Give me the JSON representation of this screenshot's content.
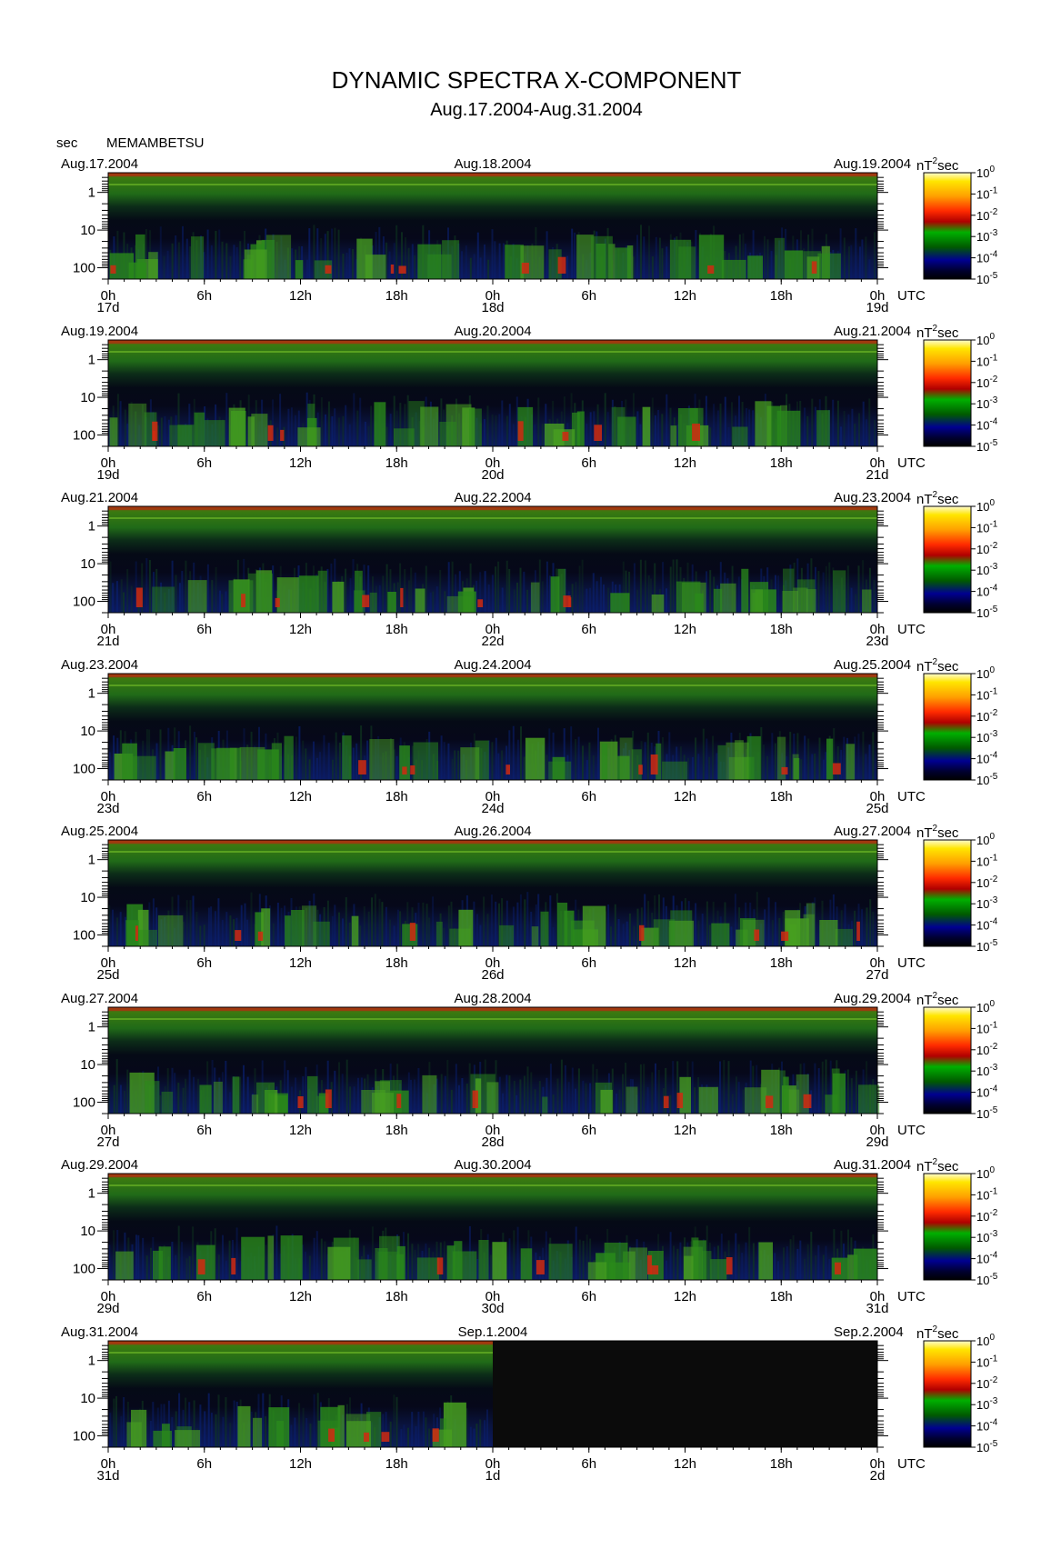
{
  "title": "DYNAMIC SPECTRA X-COMPONENT",
  "subtitle": "Aug.17.2004-Aug.31.2004",
  "y_unit": "sec",
  "station": "MEMAMBETSU",
  "colorbar_unit": "nT",
  "colorbar_unit_sup": "2",
  "colorbar_unit_tail": "sec",
  "x_unit": "UTC",
  "chart_data": {
    "type": "heatmap",
    "title": "DYNAMIC SPECTRA X-COMPONENT",
    "subtitle": "Aug.17.2004-Aug.31.2004",
    "ylabel": "sec",
    "y_scale": "log",
    "y_ticks": [
      "1",
      "10",
      "100"
    ],
    "x_ticks": [
      "0h",
      "6h",
      "12h",
      "18h",
      "0h",
      "6h",
      "12h",
      "18h",
      "0h"
    ],
    "x_unit": "UTC",
    "colorbar": {
      "scale": "log",
      "ticks": [
        "10^0",
        "10^-1",
        "10^-2",
        "10^-3",
        "10^-4",
        "10^-5"
      ],
      "colors": [
        "#fff200",
        "#ffb000",
        "#ff3000",
        "#c00000",
        "#00c000",
        "#006000",
        "#000060",
        "#000000"
      ]
    },
    "panels": [
      {
        "start": "Aug.17.2004",
        "mid": "Aug.18.2004",
        "end": "Aug.19.2004",
        "d0": "17d",
        "d1": "18d",
        "d2": "19d",
        "has_data_until": 1.0
      },
      {
        "start": "Aug.19.2004",
        "mid": "Aug.20.2004",
        "end": "Aug.21.2004",
        "d0": "19d",
        "d1": "20d",
        "d2": "21d",
        "has_data_until": 1.0
      },
      {
        "start": "Aug.21.2004",
        "mid": "Aug.22.2004",
        "end": "Aug.23.2004",
        "d0": "21d",
        "d1": "22d",
        "d2": "23d",
        "has_data_until": 1.0
      },
      {
        "start": "Aug.23.2004",
        "mid": "Aug.24.2004",
        "end": "Aug.25.2004",
        "d0": "23d",
        "d1": "24d",
        "d2": "25d",
        "has_data_until": 1.0
      },
      {
        "start": "Aug.25.2004",
        "mid": "Aug.26.2004",
        "end": "Aug.27.2004",
        "d0": "25d",
        "d1": "26d",
        "d2": "27d",
        "has_data_until": 1.0
      },
      {
        "start": "Aug.27.2004",
        "mid": "Aug.28.2004",
        "end": "Aug.29.2004",
        "d0": "27d",
        "d1": "28d",
        "d2": "29d",
        "has_data_until": 1.0
      },
      {
        "start": "Aug.29.2004",
        "mid": "Aug.30.2004",
        "end": "Aug.31.2004",
        "d0": "29d",
        "d1": "30d",
        "d2": "31d",
        "has_data_until": 1.0
      },
      {
        "start": "Aug.31.2004",
        "mid": "Sep.1.2004",
        "end": "Sep.2.2004",
        "d0": "31d",
        "d1": "1d",
        "d2": "2d",
        "has_data_until": 0.5
      }
    ]
  }
}
